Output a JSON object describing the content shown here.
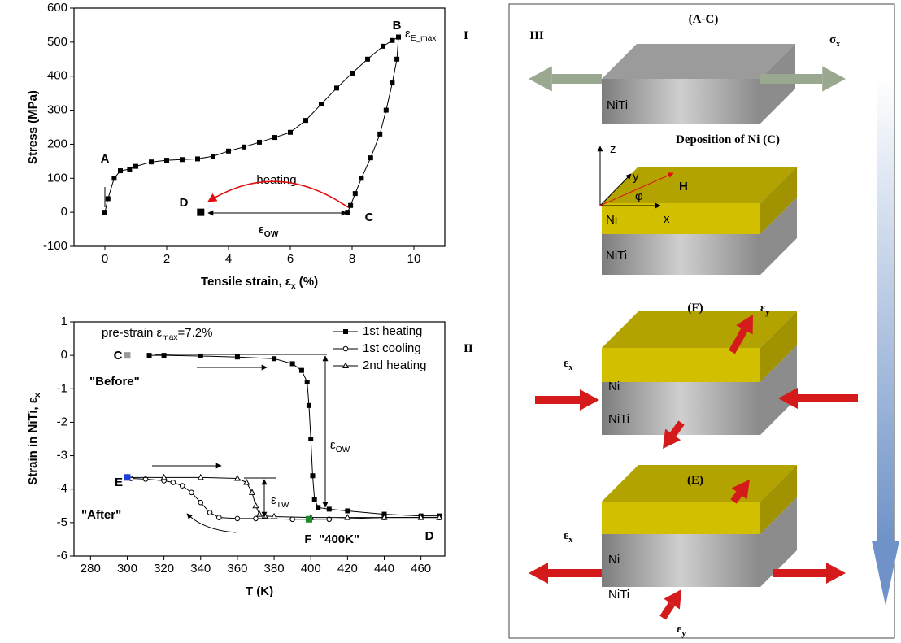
{
  "chart_data": [
    {
      "type": "line",
      "x_label": [
        "Tensile strain, ε",
        "x",
        " (%)"
      ],
      "y_label": "Stress (MPa)",
      "xlim": [
        -1,
        11
      ],
      "xticks": [
        0,
        2,
        4,
        6,
        8,
        10
      ],
      "ylim": [
        -100,
        600
      ],
      "yticks": [
        -100,
        0,
        100,
        200,
        300,
        400,
        500,
        600
      ],
      "series": [
        {
          "color": "#000000",
          "marker": "square",
          "x": [
            0,
            0.1,
            0.3,
            0.5,
            0.8,
            1,
            1.5,
            2,
            2.5,
            3,
            3.5,
            4,
            4.5,
            5,
            5.5,
            6,
            6.5,
            7,
            7.5,
            8,
            8.5,
            9,
            9.3,
            9.5
          ],
          "values": [
            0,
            40,
            100,
            122,
            127,
            135,
            148,
            153,
            155,
            157,
            165,
            180,
            192,
            206,
            220,
            235,
            270,
            318,
            365,
            409,
            450,
            488,
            505,
            515
          ]
        },
        {
          "color": "#000000",
          "marker": "square",
          "x": [
            9.5,
            9.45,
            9.3,
            9.1,
            8.9,
            8.6,
            8.3,
            8.1,
            7.95,
            7.85
          ],
          "values": [
            515,
            450,
            380,
            300,
            230,
            160,
            100,
            55,
            20,
            0
          ]
        },
        {
          "color": "#000000",
          "marker": "square",
          "x": [
            3.1
          ],
          "values": [
            0
          ]
        }
      ],
      "annotations": [
        [
          "A"
        ],
        [
          "B"
        ],
        [
          "ε",
          "E_max"
        ],
        [
          "C"
        ],
        [
          "D"
        ],
        [
          "heating"
        ],
        [
          "ε",
          "OW"
        ],
        [
          "I"
        ]
      ]
    },
    {
      "type": "line",
      "x_label": "T (K)",
      "y_label": [
        "Strain in NiTi, ε",
        "x"
      ],
      "xlim": [
        271,
        473
      ],
      "xticks": [
        280,
        300,
        320,
        340,
        360,
        380,
        400,
        420,
        440,
        460
      ],
      "ylim": [
        -6,
        1
      ],
      "yticks": [
        -6,
        -5,
        -4,
        -3,
        -2,
        -1,
        0,
        1
      ],
      "series": [
        {
          "name": "1st heating",
          "color": "#000000",
          "marker": "square",
          "x": [
            312,
            320,
            340,
            360,
            380,
            390,
            395,
            398,
            399,
            400,
            401,
            402,
            404,
            410,
            420,
            440,
            460,
            470
          ],
          "values": [
            0,
            0,
            -0.02,
            -0.05,
            -0.1,
            -0.25,
            -0.45,
            -0.8,
            -1.5,
            -2.5,
            -3.6,
            -4.3,
            -4.55,
            -4.6,
            -4.65,
            -4.75,
            -4.8,
            -4.8
          ]
        },
        {
          "name": "1st cooling",
          "color": "#000000",
          "marker": "circle",
          "x": [
            470,
            440,
            410,
            390,
            370,
            360,
            350,
            345,
            340,
            335,
            330,
            325,
            320,
            310,
            302
          ],
          "values": [
            -4.85,
            -4.85,
            -4.9,
            -4.9,
            -4.88,
            -4.88,
            -4.85,
            -4.7,
            -4.4,
            -4.1,
            -3.9,
            -3.8,
            -3.75,
            -3.7,
            -3.68
          ]
        },
        {
          "name": "2nd heating",
          "color": "#000000",
          "marker": "triangle",
          "x": [
            300,
            320,
            340,
            360,
            365,
            368,
            370,
            372,
            375,
            380,
            400,
            420,
            440,
            460,
            470
          ],
          "values": [
            -3.65,
            -3.65,
            -3.65,
            -3.68,
            -3.8,
            -4.1,
            -4.5,
            -4.75,
            -4.8,
            -4.82,
            -4.85,
            -4.85,
            -4.85,
            -4.85,
            -4.85
          ]
        }
      ],
      "points": [
        {
          "x": 300,
          "y": 0,
          "color": "#999999"
        },
        {
          "x": 300,
          "y": -3.65,
          "color": "#1f3fd8"
        },
        {
          "x": 399,
          "y": -4.9,
          "color": "#1a8a2a"
        }
      ],
      "annotations": [
        [
          "pre-strain ε",
          "max",
          "=7.2%"
        ],
        [
          "C"
        ],
        [
          "\"Before\""
        ],
        [
          "E"
        ],
        [
          "\"After\""
        ],
        [
          "F"
        ],
        [
          "\"400K\""
        ],
        [
          "D"
        ],
        [
          "ε",
          "OW"
        ],
        [
          "ε",
          "TW"
        ],
        [
          "II"
        ]
      ]
    }
  ],
  "diagram": {
    "labels": [
      [
        "III"
      ],
      [
        "(A-C)"
      ],
      [
        "σ",
        "x"
      ],
      [
        "NiTi"
      ],
      [
        "Deposition of Ni (C)"
      ],
      [
        "z"
      ],
      [
        "y"
      ],
      [
        "x"
      ],
      [
        "φ"
      ],
      [
        "H"
      ],
      [
        "Ni"
      ],
      [
        "NiTi"
      ],
      [
        "(F)"
      ],
      [
        "ε",
        "y"
      ],
      [
        "ε",
        "x"
      ],
      [
        "Ni"
      ],
      [
        "NiTi"
      ],
      [
        "(E)"
      ],
      [
        "ε",
        "x"
      ],
      [
        "Ni"
      ],
      [
        "NiTi"
      ],
      [
        "ε",
        "y"
      ]
    ]
  }
}
